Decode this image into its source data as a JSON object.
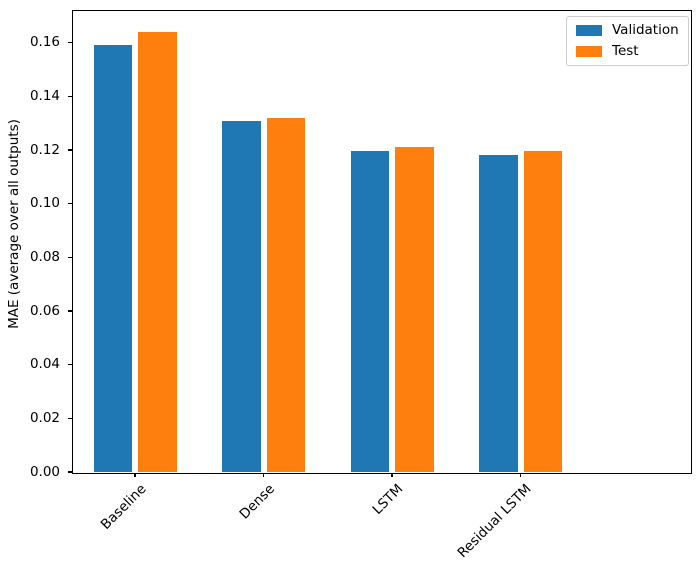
{
  "chart_data": {
    "type": "bar",
    "categories": [
      "Baseline",
      "Dense",
      "LSTM",
      "Residual LSTM"
    ],
    "series": [
      {
        "name": "Validation",
        "color": "#1f77b4",
        "values": [
          0.159,
          0.131,
          0.1195,
          0.118
        ]
      },
      {
        "name": "Test",
        "color": "#ff7f0e",
        "values": [
          0.164,
          0.132,
          0.121,
          0.1195
        ]
      }
    ],
    "title": "",
    "xlabel": "",
    "ylabel": "MAE (average over all outputs)",
    "ylim": [
      0,
      0.1722
    ],
    "yticks": [
      0.0,
      0.02,
      0.04,
      0.06,
      0.08,
      0.1,
      0.12,
      0.14,
      0.16
    ],
    "ytick_labels": [
      "0.00",
      "0.02",
      "0.04",
      "0.06",
      "0.08",
      "0.10",
      "0.12",
      "0.14",
      "0.16"
    ],
    "xtick_rotation_deg": 45,
    "grid": false,
    "legend": {
      "position": "upper right",
      "entries": [
        "Validation",
        "Test"
      ]
    },
    "colors": {
      "background": "#ffffff",
      "spine": "#000000",
      "legend_border": "#cccccc"
    }
  }
}
